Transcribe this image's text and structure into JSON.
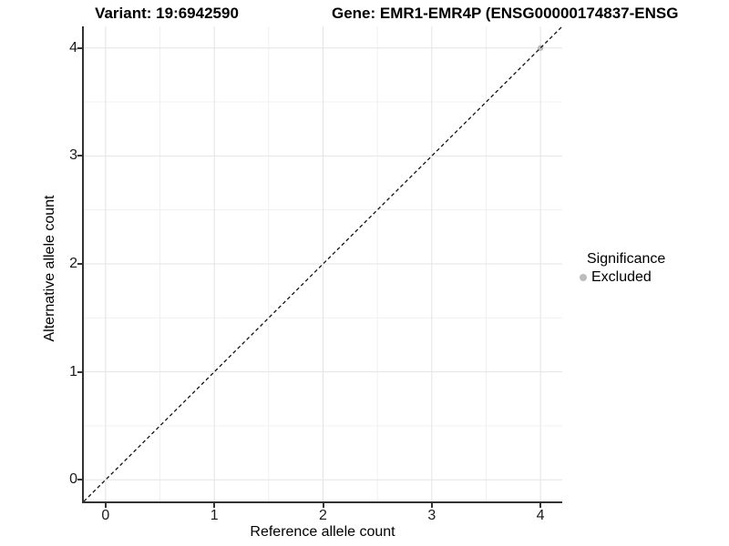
{
  "titles": {
    "variant": "Variant: 19:6942590",
    "gene": "Gene: EMR1-EMR4P (ENSG00000174837-ENSG"
  },
  "chart_data": {
    "type": "scatter",
    "xlabel": "Reference allele count",
    "ylabel": "Alternative allele count",
    "xlim": [
      -0.2,
      4.2
    ],
    "ylim": [
      -0.2,
      4.2
    ],
    "x_ticks": [
      0,
      1,
      2,
      3,
      4
    ],
    "y_ticks": [
      0,
      1,
      2,
      3,
      4
    ],
    "minor_grid_step": 0.5,
    "grid": true,
    "identity_line": {
      "type": "dashed",
      "slope": 1,
      "intercept": 0
    },
    "series": [
      {
        "name": "Excluded",
        "color": "#bcbcbc",
        "points": [
          {
            "x": 4,
            "y": 4
          }
        ]
      }
    ],
    "legend": {
      "title": "Significance",
      "position": "right",
      "entries": [
        {
          "label": "Excluded",
          "color": "#bcbcbc"
        }
      ]
    }
  },
  "colors": {
    "axis_line": "#333333",
    "grid_major": "#e3e3e3",
    "grid_minor": "#f0f0f0",
    "identity_line": "#111111",
    "point": "#bcbcbc",
    "background": "#ffffff"
  }
}
